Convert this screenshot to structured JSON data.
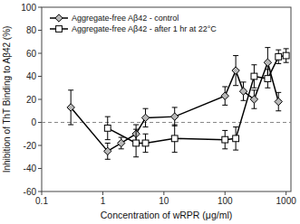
{
  "chart_data": {
    "type": "line",
    "xlabel": "Concentration of wRPR (μg/ml)",
    "ylabel": "Inhibition of ThT Binding to Aβ42 (%)",
    "log": "x",
    "xlim": [
      0.1,
      1200
    ],
    "ylim": [
      -60,
      100
    ],
    "xticks": [
      0.1,
      1,
      10,
      100,
      1000
    ],
    "yticks": [
      -60,
      -40,
      -20,
      0,
      20,
      40,
      60,
      80,
      100
    ],
    "hline": 0,
    "grid": false,
    "legend": "upper left",
    "series": [
      {
        "name": "Aggregate-free Aβ42 - control",
        "x": [
          0.3,
          1.2,
          2.0,
          3.5,
          5.0,
          15.0,
          100.0,
          150.0,
          200.0,
          300.0,
          500.0,
          750.0
        ],
        "values": [
          13,
          -25,
          -18,
          -10,
          4,
          5,
          23,
          45,
          27,
          20,
          52,
          18
        ],
        "yerr": [
          15,
          7,
          5,
          8,
          8,
          8,
          8,
          13,
          8,
          8,
          13,
          8
        ],
        "color": "#000000",
        "marker": "diamond",
        "line_style": "solid"
      },
      {
        "name": "Aggregate-free Aβ42 - after 1 hr at 22°C",
        "x": [
          1.2,
          3.5,
          5.0,
          15.0,
          100.0,
          150.0,
          300.0,
          500.0,
          750.0,
          1000.0
        ],
        "values": [
          -5,
          -18,
          -18,
          -14,
          -15,
          -14,
          40,
          38,
          57,
          58
        ],
        "yerr": [
          10,
          12,
          8,
          12,
          8,
          10,
          10,
          8,
          6,
          6
        ],
        "color": "#000000",
        "marker": "square",
        "line_style": "solid"
      }
    ]
  }
}
